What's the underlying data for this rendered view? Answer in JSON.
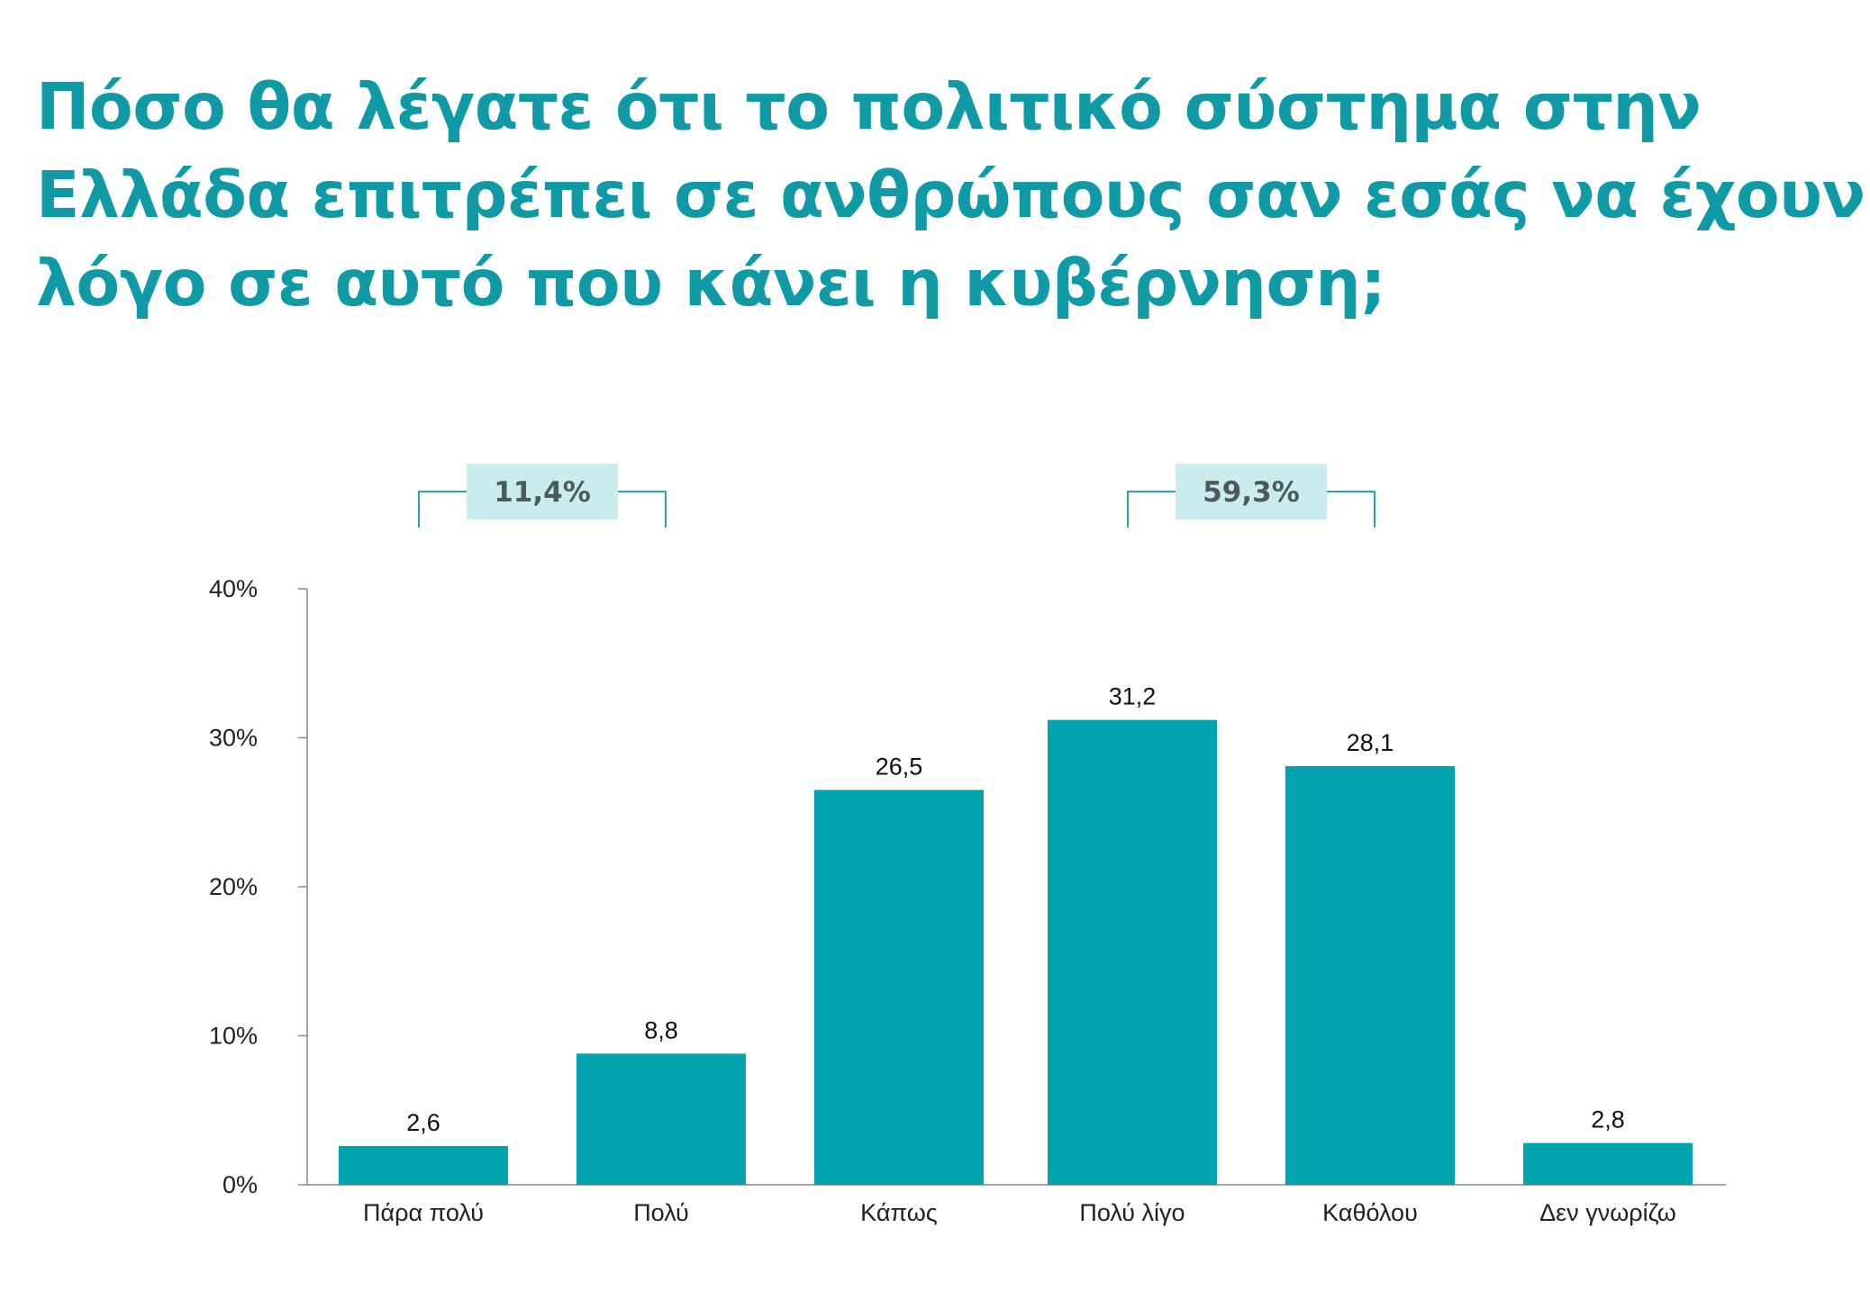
{
  "title_lines": [
    "Πόσο θα λέγατε ότι το πολιτικό σύστημα στην",
    "Ελλάδα επιτρέπει σε ανθρώπους σαν εσάς να έχουν",
    "λόγο σε αυτό που κάνει η κυβέρνηση;"
  ],
  "colors": {
    "title": "#0f9aa5",
    "bar": "#00a3ae",
    "group_box": "#c9ecee",
    "group_bracket": "#0f9aa5",
    "axis": "#888888"
  },
  "chart_data": {
    "type": "bar",
    "title": "Πόσο θα λέγατε ότι το πολιτικό σύστημα στην Ελλάδα επιτρέπει σε ανθρώπους σαν εσάς να έχουν λόγο σε αυτό που κάνει η κυβέρνηση;",
    "categories": [
      "Πάρα πολύ",
      "Πολύ",
      "Κάπως",
      "Πολύ λίγο",
      "Καθόλου",
      "Δεν γνωρίζω"
    ],
    "values": [
      2.6,
      8.8,
      26.5,
      31.2,
      28.1,
      2.8
    ],
    "value_labels": [
      "2,6",
      "8,8",
      "26,5",
      "31,2",
      "28,1",
      "2,8"
    ],
    "yticks": [
      0,
      10,
      20,
      30,
      40
    ],
    "ytick_labels": [
      "0%",
      "10%",
      "20%",
      "30%",
      "40%"
    ],
    "ylim": [
      0,
      40
    ],
    "xlabel": "",
    "ylabel": "",
    "grid": false,
    "groups": [
      {
        "label": "11,4%",
        "categories": [
          "Πάρα πολύ",
          "Πολύ"
        ],
        "value": 11.4
      },
      {
        "label": "59,3%",
        "categories": [
          "Πολύ λίγο",
          "Καθόλου"
        ],
        "value": 59.3
      }
    ]
  }
}
